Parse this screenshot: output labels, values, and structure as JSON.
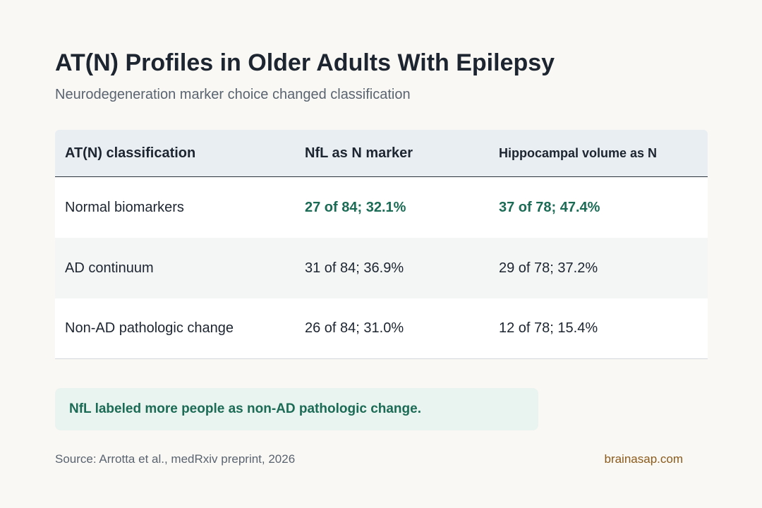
{
  "header": {
    "title": "AT(N) Profiles in Older Adults With Epilepsy",
    "subtitle": "Neurodegeneration marker choice changed classification"
  },
  "table": {
    "columns": [
      "AT(N) classification",
      "NfL as N marker",
      "Hippocampal volume as N"
    ],
    "rows": [
      {
        "label": "Normal biomarkers",
        "nfl": "27 of 84; 32.1%",
        "hippocampal": "37 of 78; 47.4%",
        "highlight": true
      },
      {
        "label": "AD continuum",
        "nfl": "31 of 84; 36.9%",
        "hippocampal": "29 of 78; 37.2%",
        "highlight": false
      },
      {
        "label": "Non-AD pathologic change",
        "nfl": "26 of 84; 31.0%",
        "hippocampal": "12 of 78; 15.4%",
        "highlight": false
      }
    ]
  },
  "callout": {
    "text": "NfL labeled more people as non-AD pathologic change."
  },
  "footer": {
    "source": "Source: Arrotta et al., medRxiv preprint, 2026",
    "brand": "brainasap.com"
  },
  "colors": {
    "accent_green": "#1b6b55",
    "brand_brown": "#8a5a1a",
    "header_bg": "#e9eef2",
    "callout_bg": "#e9f3ef"
  }
}
